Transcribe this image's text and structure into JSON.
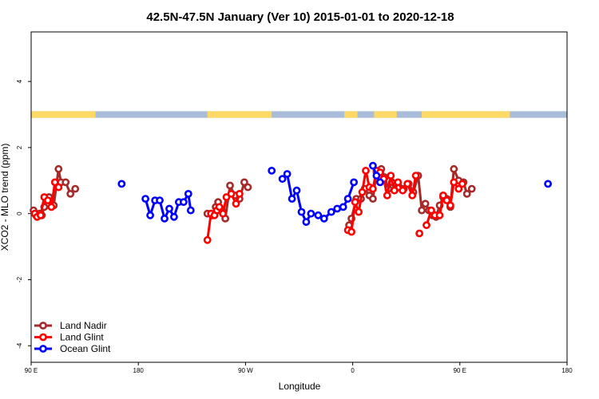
{
  "chart_data": {
    "type": "line",
    "title": "42.5N-47.5N January (Ver 10)   2015-01-01 to 2020-12-18",
    "xlabel": "Longitude",
    "ylabel": "XCO2 - MLO trend (ppm)",
    "xlim": [
      90,
      540
    ],
    "ylim": [
      -4.5,
      5.5
    ],
    "x_ticks": [
      {
        "value": 90,
        "label": "90 E"
      },
      {
        "value": 180,
        "label": "180"
      },
      {
        "value": 270,
        "label": "90 W"
      },
      {
        "value": 360,
        "label": "0"
      },
      {
        "value": 450,
        "label": "90 E"
      },
      {
        "value": 540,
        "label": "180"
      }
    ],
    "y_ticks": [
      {
        "value": -4,
        "label": "-4"
      },
      {
        "value": -2,
        "label": "-2"
      },
      {
        "value": 0,
        "label": "0"
      },
      {
        "value": 2,
        "label": "2"
      },
      {
        "value": 4,
        "label": "4"
      }
    ],
    "grid": false,
    "legend_position": "bottom-left",
    "surface_band": {
      "y_range": [
        2.9,
        3.1
      ],
      "land_color": "#FFD966",
      "ocean_color": "#A9BDD9",
      "land_segments": [
        [
          90,
          144
        ],
        [
          238,
          292
        ],
        [
          353,
          364
        ],
        [
          378,
          397
        ],
        [
          418,
          492
        ]
      ]
    },
    "series": [
      {
        "name": "Land Nadir",
        "color": "#A52A2A",
        "points": [
          [
            92,
            0.1
          ],
          [
            94,
            -0.05
          ],
          [
            97,
            0.0
          ],
          [
            99,
            -0.05
          ],
          [
            101,
            0.2
          ],
          [
            103,
            0.45
          ],
          [
            105,
            0.5
          ],
          [
            107,
            0.35
          ],
          [
            109,
            0.25
          ],
          [
            113,
            1.35
          ],
          [
            115,
            0.95
          ],
          [
            119,
            0.95
          ],
          [
            123,
            0.6
          ],
          [
            127,
            0.75
          ],
          null,
          [
            238,
            0.0
          ],
          [
            242,
            -0.05
          ],
          [
            245,
            0.2
          ],
          [
            247,
            0.35
          ],
          [
            249,
            0.15
          ],
          [
            251,
            0.05
          ],
          [
            253,
            -0.15
          ],
          [
            257,
            0.85
          ],
          [
            261,
            0.55
          ],
          [
            265,
            0.45
          ],
          [
            269,
            0.95
          ],
          [
            272,
            0.8
          ],
          null,
          [
            357,
            -0.35
          ],
          [
            359,
            -0.15
          ],
          [
            363,
            0.45
          ],
          [
            367,
            0.45
          ],
          [
            370,
            0.75
          ],
          [
            374,
            0.55
          ],
          [
            377,
            0.45
          ],
          [
            380,
            1.25
          ],
          [
            384,
            1.35
          ],
          [
            387,
            1.1
          ],
          [
            390,
            0.75
          ],
          [
            393,
            0.95
          ],
          [
            396,
            0.75
          ],
          [
            399,
            0.8
          ],
          [
            403,
            0.75
          ],
          [
            407,
            0.9
          ],
          [
            411,
            0.65
          ],
          [
            415,
            1.15
          ],
          [
            418,
            0.1
          ],
          [
            421,
            0.3
          ],
          [
            424,
            0.1
          ],
          [
            427,
            -0.05
          ],
          [
            430,
            -0.1
          ],
          [
            433,
            0.25
          ],
          [
            436,
            0.5
          ],
          [
            439,
            0.45
          ],
          [
            442,
            0.2
          ],
          [
            445,
            1.35
          ],
          [
            449,
            1.0
          ],
          [
            453,
            0.95
          ],
          [
            456,
            0.6
          ],
          [
            460,
            0.75
          ]
        ]
      },
      {
        "name": "Land Glint",
        "color": "#FF0000",
        "points": [
          [
            93,
            0.0
          ],
          [
            95,
            -0.1
          ],
          [
            98,
            -0.05
          ],
          [
            101,
            0.5
          ],
          [
            104,
            0.4
          ],
          [
            107,
            0.2
          ],
          [
            110,
            0.95
          ],
          [
            113,
            0.8
          ],
          null,
          [
            238,
            -0.8
          ],
          [
            241,
            0.0
          ],
          [
            244,
            -0.05
          ],
          [
            246,
            0.1
          ],
          [
            248,
            0.2
          ],
          [
            251,
            0.0
          ],
          [
            254,
            0.5
          ],
          [
            258,
            0.6
          ],
          [
            262,
            0.3
          ],
          [
            265,
            0.6
          ],
          null,
          [
            356,
            -0.5
          ],
          [
            359,
            -0.55
          ],
          [
            362,
            0.35
          ],
          [
            365,
            0.05
          ],
          [
            368,
            0.65
          ],
          [
            371,
            1.3
          ],
          [
            374,
            0.8
          ],
          [
            377,
            0.75
          ],
          [
            380,
            1.3
          ],
          [
            383,
            1.25
          ],
          [
            386,
            1.05
          ],
          [
            389,
            0.55
          ],
          [
            392,
            1.15
          ],
          [
            395,
            0.7
          ],
          [
            398,
            0.95
          ],
          [
            402,
            0.7
          ],
          [
            406,
            0.9
          ],
          [
            410,
            0.55
          ],
          [
            413,
            1.15
          ],
          null,
          [
            416,
            -0.6
          ],
          null,
          [
            422,
            -0.35
          ],
          [
            426,
            0.1
          ],
          [
            429,
            -0.05
          ],
          [
            433,
            -0.05
          ],
          [
            436,
            0.55
          ],
          [
            439,
            0.4
          ],
          [
            442,
            0.25
          ],
          [
            445,
            0.95
          ],
          [
            449,
            0.75
          ],
          [
            452,
            0.9
          ]
        ]
      },
      {
        "name": "Ocean Glint",
        "color": "#0000FF",
        "points": [
          [
            166,
            0.9
          ],
          null,
          [
            186,
            0.45
          ],
          [
            190,
            -0.05
          ],
          [
            194,
            0.4
          ],
          [
            198,
            0.4
          ],
          [
            202,
            -0.15
          ],
          [
            206,
            0.15
          ],
          [
            210,
            -0.1
          ],
          [
            214,
            0.35
          ],
          [
            218,
            0.35
          ],
          [
            222,
            0.6
          ],
          [
            224,
            0.1
          ],
          null,
          [
            292,
            1.3
          ],
          null,
          [
            301,
            1.05
          ],
          [
            305,
            1.2
          ],
          [
            309,
            0.45
          ],
          [
            313,
            0.7
          ],
          [
            317,
            0.05
          ],
          [
            321,
            -0.25
          ],
          [
            325,
            0.0
          ],
          [
            331,
            -0.05
          ],
          [
            336,
            -0.15
          ],
          [
            342,
            0.05
          ],
          [
            347,
            0.15
          ],
          [
            352,
            0.2
          ],
          [
            356,
            0.45
          ],
          [
            361,
            0.95
          ],
          null,
          [
            377,
            1.45
          ],
          [
            380,
            1.15
          ],
          [
            383,
            0.95
          ],
          null,
          [
            524,
            0.9
          ]
        ]
      }
    ]
  }
}
